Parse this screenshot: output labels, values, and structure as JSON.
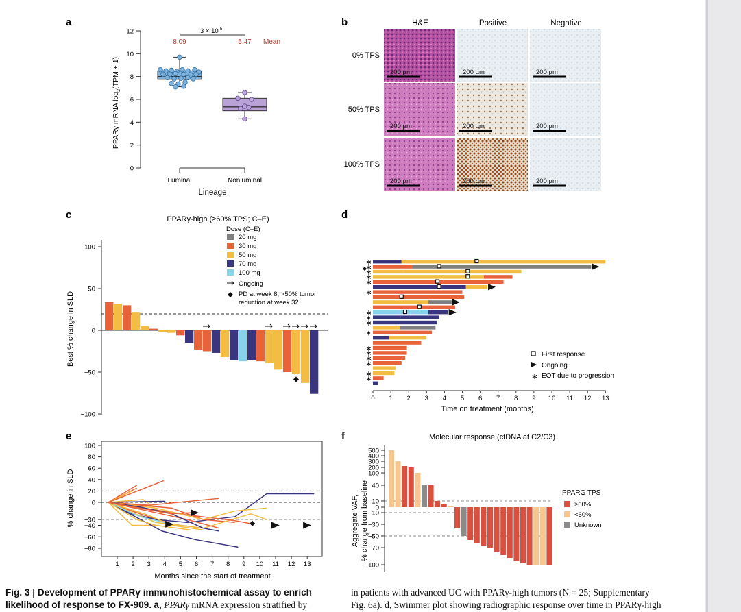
{
  "colors": {
    "luminal": "#7fb3dd",
    "nonluminal": "#b9a3d6",
    "mean": "#b03a2e",
    "dose20": "#7f7f7f",
    "dose30": "#e8623a",
    "dose50": "#f2bd42",
    "dose70": "#3a357f",
    "dose100": "#86d3ea",
    "pos": "#d9503f",
    "neg": "#f7c68f",
    "unk": "#8b8b8b"
  },
  "panels": {
    "a": {
      "letter": "a"
    },
    "b": {
      "letter": "b"
    },
    "c": {
      "letter": "c"
    },
    "d": {
      "letter": "d"
    },
    "e": {
      "letter": "e"
    },
    "f": {
      "letter": "f"
    }
  },
  "panel_a": {
    "pvalue": "3 × 10",
    "pvalue_exp": "-5",
    "mean_luminal": "8.09",
    "mean_nonluminal": "5.47",
    "mean_label": "Mean",
    "ylabel_pre": "PPARγ mRNA log",
    "ylabel_sub": "2",
    "ylabel_post": "(TPM + 1)",
    "xlabel": "Lineage",
    "categories": [
      "Luminal",
      "Nonluminal"
    ],
    "yticks": [
      "0",
      "2",
      "4",
      "6",
      "8",
      "10",
      "12"
    ],
    "box_luminal": {
      "q1": 7.75,
      "median": 8.0,
      "q3": 8.5,
      "min": 7.1,
      "max": 9.7
    },
    "box_nonluminal": {
      "q1": 5.0,
      "median": 5.35,
      "q3": 6.1,
      "min": 4.3,
      "max": 6.6
    }
  },
  "panel_b": {
    "columns": [
      "H&E",
      "Positive",
      "Negative"
    ],
    "rows": [
      "0% TPS",
      "50% TPS",
      "100% TPS"
    ],
    "scale": "200 µm"
  },
  "panel_c": {
    "title": "PPARγ-high (≥60% TPS; C–E)",
    "legend_title": "Dose (C–E)",
    "legend": [
      "20 mg",
      "30 mg",
      "50 mg",
      "70 mg",
      "100 mg"
    ],
    "ongoing": "Ongoing",
    "pd_note": "PD at week 8; >50% tumor",
    "pd_note2": "reduction at week 32",
    "ylabel": "Best % change in SLD",
    "yticks": [
      "−100",
      "−50",
      "0",
      "50",
      "100"
    ]
  },
  "chart_data": [
    {
      "type": "bar",
      "panel": "c",
      "title": "PPARγ-high (≥60% TPS; C–E)",
      "ylabel": "Best % change in SLD",
      "ylim": [
        -100,
        100
      ],
      "reference_line": 20,
      "values": [
        34,
        32,
        30,
        22,
        5,
        2,
        -2,
        -3,
        -6,
        -15,
        -23,
        -25,
        -27,
        -32,
        -36,
        -37,
        -36,
        -37,
        -39,
        -47,
        -50,
        -52,
        -63,
        -76
      ],
      "doses": [
        "30 mg",
        "50 mg",
        "30 mg",
        "50 mg",
        "50 mg",
        "30 mg",
        "50 mg",
        "50 mg",
        "30 mg",
        "70 mg",
        "30 mg",
        "30 mg",
        "70 mg",
        "50 mg",
        "70 mg",
        "100 mg",
        "70 mg",
        "30 mg",
        "50 mg",
        "50 mg",
        "30 mg",
        "50 mg",
        "50 mg",
        "70 mg"
      ],
      "ongoing_index": [
        11,
        18,
        20,
        21,
        22,
        23
      ],
      "pd_index": 21
    },
    {
      "type": "bar",
      "panel": "d",
      "xlabel": "Time on treatment (months)",
      "xticks": [
        "0",
        "1",
        "2",
        "3",
        "4",
        "5",
        "6",
        "7",
        "8",
        "9",
        "10",
        "11",
        "12",
        "13"
      ],
      "legend": [
        "First response",
        "Ongoing",
        "EOT due to progression"
      ]
    },
    {
      "type": "line",
      "panel": "e",
      "xlabel": "Months since the start of treatment",
      "ylabel": "% change in SLD",
      "xticks": [
        "1",
        "2",
        "3",
        "4",
        "5",
        "6",
        "7",
        "8",
        "9",
        "10",
        "11",
        "12",
        "13"
      ],
      "yticks": [
        "100",
        "80",
        "60",
        "40",
        "20",
        "0",
        "−30",
        "−40",
        "−60",
        "−80"
      ]
    },
    {
      "type": "bar",
      "panel": "f",
      "title": "Molecular response (ctDNA at C2/C3)",
      "ylabel": "Aggregate VAF,",
      "ylabel2": "% change from baseline",
      "legend_title": "PPARG TPS",
      "legend": [
        "≥60%",
        "<60%",
        "Unknown"
      ],
      "yticks": [
        "500",
        "400",
        "300",
        "200",
        "100",
        "40",
        "10",
        "0",
        "−10",
        "−30",
        "−50",
        "−70",
        "−100"
      ]
    }
  ],
  "caption": {
    "left_bold": "Fig. 3 | Development of PPARγ immunohistochemical assay to enrich likelihood of response to FX-909.",
    "left_a": "a,",
    "left_em": "PPARγ",
    "left_rest": "mRNA expression stratified by",
    "right_line1": "in patients with advanced UC with PPARγ-high tumors (N = 25; Supplementary",
    "right_line2": "Fig. 6a). d, Swimmer plot showing radiographic response over time in PPARγ-high"
  }
}
